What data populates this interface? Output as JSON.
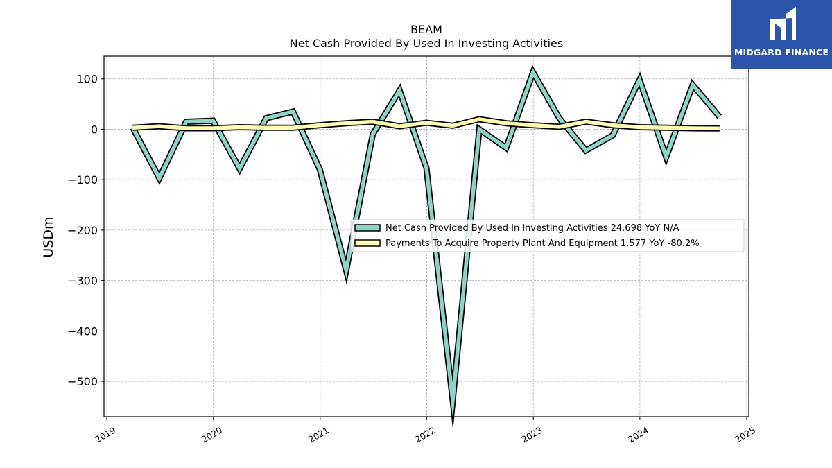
{
  "brand": {
    "name": "MIDGARD FINANCE",
    "color": "#2b55a8"
  },
  "chart_data": {
    "type": "line",
    "title": "BEAM",
    "subtitle": "Net Cash Provided By Used In Investing Activities",
    "xlabel": "",
    "ylabel": "USDm",
    "xlim": [
      "2019-01-01",
      "2025-01-01"
    ],
    "ylim": [
      -570,
      145
    ],
    "x_ticks": [
      "2019",
      "2020",
      "2021",
      "2022",
      "2023",
      "2024",
      "2025"
    ],
    "y_ticks": [
      100,
      0,
      -100,
      -200,
      -300,
      -400,
      -500
    ],
    "y_tick_labels": [
      "100",
      "0",
      "−100",
      "−200",
      "−300",
      "−400",
      "−500"
    ],
    "grid": true,
    "legend_position": "center-right",
    "x": [
      "2019-03-31",
      "2019-06-30",
      "2019-09-30",
      "2019-12-31",
      "2020-03-31",
      "2020-06-30",
      "2020-09-30",
      "2020-12-31",
      "2021-03-31",
      "2021-06-30",
      "2021-09-30",
      "2021-12-31",
      "2022-03-31",
      "2022-06-30",
      "2022-09-30",
      "2022-12-31",
      "2023-03-31",
      "2023-06-30",
      "2023-09-30",
      "2023-12-31",
      "2024-03-31",
      "2024-06-30",
      "2024-09-30"
    ],
    "series": [
      {
        "name": "Net Cash Provided By Used In Investing Activities",
        "legend_label": "Net Cash Provided By Used In Investing Activities  24.698 YoY N/A",
        "color": "#8dd3c7",
        "values": [
          3,
          -97,
          15,
          17,
          -78,
          22,
          35,
          -80,
          -280,
          -10,
          77,
          -77,
          -538,
          0,
          -37,
          113,
          22,
          -42,
          -12,
          98,
          -55,
          88,
          24.698
        ]
      },
      {
        "name": "Payments To Acquire Property Plant And Equipment",
        "legend_label": "Payments To Acquire Property Plant And Equipment  1.577 YoY -80.2%",
        "color": "#ffffb3",
        "values": [
          3,
          6,
          2,
          2,
          4,
          3,
          3,
          8,
          12,
          15,
          6,
          13,
          7,
          20,
          12,
          8,
          5,
          15,
          8,
          4,
          3,
          2,
          1.577
        ]
      }
    ]
  }
}
